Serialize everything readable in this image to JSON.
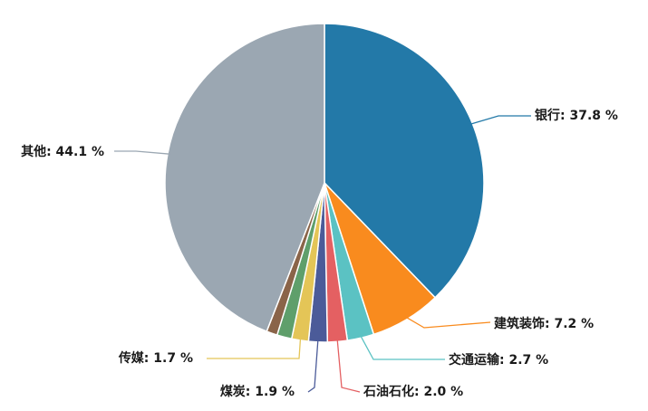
{
  "chart_data": {
    "type": "pie",
    "title": "",
    "slices": [
      {
        "name": "银行",
        "value": 37.8,
        "color": "#2379a8",
        "label": "银行: 37.8 %"
      },
      {
        "name": "建筑装饰",
        "value": 7.2,
        "color": "#f98b1e",
        "label": "建筑装饰: 7.2 %"
      },
      {
        "name": "交通运输",
        "value": 2.7,
        "color": "#5bc2c3",
        "label": "交通运输: 2.7 %"
      },
      {
        "name": "石油石化",
        "value": 2.0,
        "color": "#e46062",
        "label": "石油石化: 2.0 %"
      },
      {
        "name": "煤炭",
        "value": 1.9,
        "color": "#4b5b99",
        "label": "煤炭: 1.9 %"
      },
      {
        "name": "传媒",
        "value": 1.7,
        "color": "#e4c557",
        "label": "传媒: 1.7 %"
      },
      {
        "name": "",
        "value": 1.5,
        "color": "#5f9f6b",
        "label": ""
      },
      {
        "name": "",
        "value": 1.1,
        "color": "#8a6449",
        "label": ""
      },
      {
        "name": "其他",
        "value": 44.1,
        "color": "#9ba7b2",
        "label": "其他: 44.1 %"
      }
    ]
  }
}
